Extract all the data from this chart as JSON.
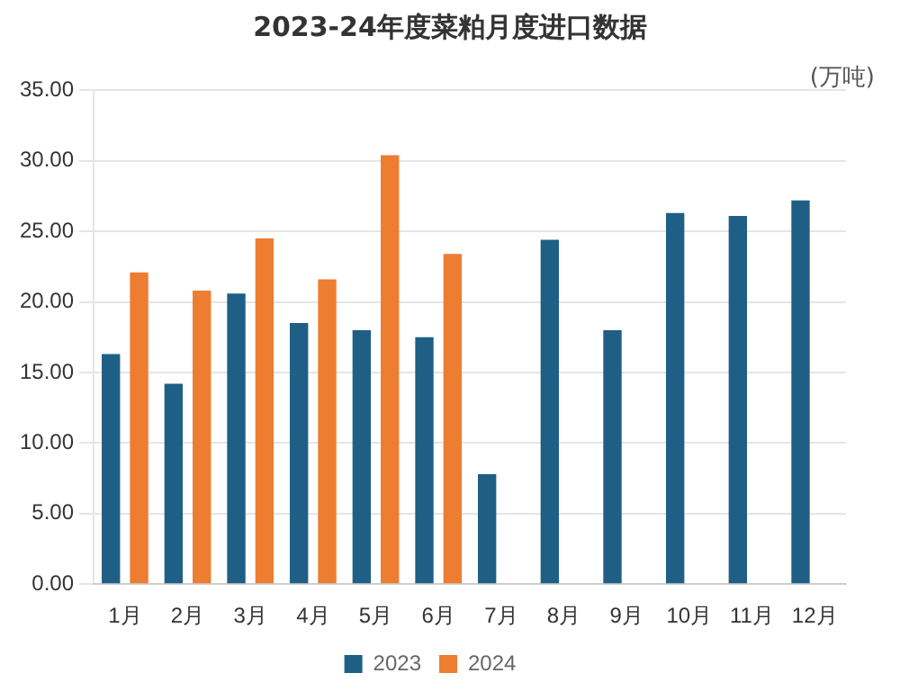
{
  "chart_data": {
    "type": "bar",
    "title": "2023-24年度菜粕月度进口数据",
    "annotations": [
      "(万吨)"
    ],
    "categories": [
      "1月",
      "2月",
      "3月",
      "4月",
      "5月",
      "6月",
      "7月",
      "8月",
      "9月",
      "10月",
      "11月",
      "12月"
    ],
    "series": [
      {
        "name": "2023",
        "color": "#1f5f86",
        "values": [
          16.3,
          14.2,
          20.6,
          18.5,
          18.0,
          17.5,
          7.8,
          24.4,
          18.0,
          26.3,
          26.1,
          27.2
        ]
      },
      {
        "name": "2024",
        "color": "#ed7d31",
        "values": [
          22.1,
          20.8,
          24.5,
          21.6,
          30.4,
          23.4,
          null,
          null,
          null,
          null,
          null,
          null
        ]
      }
    ],
    "ylim": [
      0,
      35
    ],
    "yticks": [
      {
        "value": 0,
        "label": "0.00"
      },
      {
        "value": 5,
        "label": "5.00"
      },
      {
        "value": 10,
        "label": "10.00"
      },
      {
        "value": 15,
        "label": "15.00"
      },
      {
        "value": 20,
        "label": "20.00"
      },
      {
        "value": 25,
        "label": "25.00"
      },
      {
        "value": 30,
        "label": "30.00"
      },
      {
        "value": 35,
        "label": "35.00"
      }
    ],
    "grid": "y",
    "legend": "bottom"
  }
}
